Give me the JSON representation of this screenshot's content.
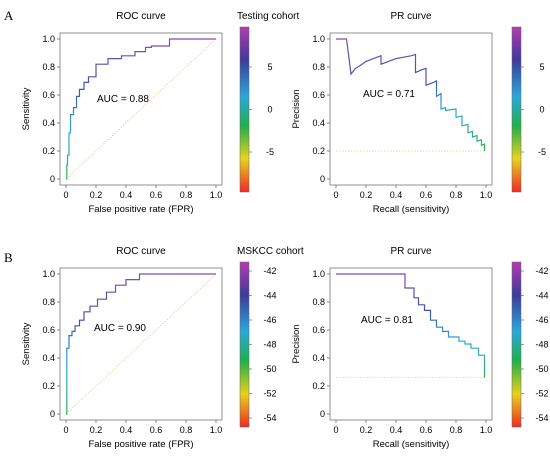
{
  "panels": [
    {
      "label": "A",
      "cohort_title": "Testing cohort"
    },
    {
      "label": "B",
      "cohort_title": "MSKCC cohort"
    }
  ],
  "chart_data": [
    {
      "type": "line",
      "title": "ROC curve",
      "xlabel": "False positive rate (FPR)",
      "ylabel": "Sensitivity",
      "xlim": [
        0,
        1
      ],
      "ylim": [
        0,
        1
      ],
      "xticks": [
        "0",
        "0.2",
        "0.4",
        "0.6",
        "0.8",
        "1.0"
      ],
      "yticks": [
        "0",
        "0.2",
        "0.4",
        "0.6",
        "0.8",
        "1.0"
      ],
      "annotation": "AUC = 0.88",
      "x": [
        0,
        0.005,
        0.005,
        0.01,
        0.01,
        0.02,
        0.02,
        0.03,
        0.03,
        0.05,
        0.05,
        0.07,
        0.07,
        0.09,
        0.09,
        0.12,
        0.12,
        0.15,
        0.15,
        0.2,
        0.2,
        0.28,
        0.28,
        0.37,
        0.37,
        0.46,
        0.46,
        0.53,
        0.53,
        0.57,
        0.57,
        0.69,
        0.69,
        1.0
      ],
      "y": [
        0,
        0,
        0.1,
        0.1,
        0.17,
        0.17,
        0.33,
        0.33,
        0.46,
        0.46,
        0.51,
        0.51,
        0.59,
        0.59,
        0.64,
        0.64,
        0.69,
        0.69,
        0.73,
        0.73,
        0.82,
        0.82,
        0.86,
        0.86,
        0.88,
        0.88,
        0.91,
        0.91,
        0.94,
        0.94,
        0.95,
        0.95,
        1.0,
        1.0
      ],
      "colorbar": {
        "ticks": [
          "5",
          "0",
          "-5"
        ]
      }
    },
    {
      "type": "line",
      "title": "PR curve",
      "xlabel": "Recall (sensitivity)",
      "ylabel": "Precision",
      "xlim": [
        0,
        1
      ],
      "ylim": [
        0,
        1
      ],
      "xticks": [
        "0",
        "0.2",
        "0.4",
        "0.6",
        "0.8",
        "1.0"
      ],
      "yticks": [
        "0",
        "0.2",
        "0.4",
        "0.6",
        "0.8",
        "1.0"
      ],
      "annotation": "AUC = 0.71",
      "baseline": 0.2,
      "x": [
        0,
        0.07,
        0.1,
        0.13,
        0.16,
        0.2,
        0.25,
        0.3,
        0.3,
        0.35,
        0.4,
        0.45,
        0.5,
        0.53,
        0.53,
        0.57,
        0.6,
        0.6,
        0.65,
        0.67,
        0.67,
        0.7,
        0.7,
        0.73,
        0.73,
        0.8,
        0.8,
        0.84,
        0.84,
        0.88,
        0.88,
        0.91,
        0.91,
        0.94,
        0.94,
        0.97,
        0.97,
        0.99,
        0.99
      ],
      "y": [
        1.0,
        1.0,
        0.75,
        0.79,
        0.81,
        0.84,
        0.86,
        0.88,
        0.82,
        0.84,
        0.86,
        0.87,
        0.88,
        0.89,
        0.76,
        0.78,
        0.79,
        0.67,
        0.69,
        0.7,
        0.59,
        0.61,
        0.5,
        0.51,
        0.49,
        0.5,
        0.44,
        0.45,
        0.38,
        0.39,
        0.33,
        0.34,
        0.3,
        0.31,
        0.27,
        0.28,
        0.24,
        0.25,
        0.2
      ],
      "colorbar": {
        "ticks": [
          "5",
          "0",
          "-5"
        ]
      }
    },
    {
      "type": "line",
      "title": "ROC curve",
      "xlabel": "False positive rate (FPR)",
      "ylabel": "Sensitivity",
      "xlim": [
        0,
        1
      ],
      "ylim": [
        0,
        1
      ],
      "xticks": [
        "0",
        "0.2",
        "0.4",
        "0.6",
        "0.8",
        "1.0"
      ],
      "yticks": [
        "0",
        "0.2",
        "0.4",
        "0.6",
        "0.8",
        "1.0"
      ],
      "annotation": "AUC = 0.90",
      "x": [
        0,
        0.005,
        0.005,
        0.02,
        0.02,
        0.04,
        0.04,
        0.06,
        0.06,
        0.09,
        0.09,
        0.12,
        0.12,
        0.16,
        0.16,
        0.21,
        0.21,
        0.27,
        0.27,
        0.33,
        0.33,
        0.4,
        0.4,
        0.49,
        0.49,
        1.0
      ],
      "y": [
        0,
        0,
        0.47,
        0.47,
        0.56,
        0.56,
        0.59,
        0.59,
        0.63,
        0.63,
        0.67,
        0.67,
        0.73,
        0.73,
        0.77,
        0.77,
        0.82,
        0.82,
        0.87,
        0.87,
        0.92,
        0.92,
        0.96,
        0.96,
        1.0,
        1.0
      ],
      "colorbar": {
        "ticks": [
          "-42",
          "-44",
          "-46",
          "-48",
          "-50",
          "-52",
          "-54"
        ]
      }
    },
    {
      "type": "line",
      "title": "PR curve",
      "xlabel": "Recall (sensitivity)",
      "ylabel": "Precision",
      "xlim": [
        0,
        1
      ],
      "ylim": [
        0,
        1
      ],
      "xticks": [
        "0",
        "0.2",
        "0.4",
        "0.6",
        "0.8",
        "1.0"
      ],
      "yticks": [
        "0",
        "0.2",
        "0.4",
        "0.6",
        "0.8",
        "1.0"
      ],
      "annotation": "AUC = 0.81",
      "baseline": 0.26,
      "x": [
        0,
        0.46,
        0.46,
        0.52,
        0.52,
        0.55,
        0.55,
        0.59,
        0.59,
        0.63,
        0.63,
        0.67,
        0.67,
        0.71,
        0.71,
        0.75,
        0.75,
        0.82,
        0.82,
        0.86,
        0.86,
        0.9,
        0.9,
        0.95,
        0.95,
        0.99,
        0.99
      ],
      "y": [
        1.0,
        1.0,
        0.9,
        0.9,
        0.83,
        0.83,
        0.78,
        0.78,
        0.74,
        0.74,
        0.67,
        0.67,
        0.62,
        0.62,
        0.59,
        0.59,
        0.55,
        0.55,
        0.52,
        0.52,
        0.5,
        0.5,
        0.47,
        0.47,
        0.42,
        0.42,
        0.26
      ],
      "colorbar": {
        "ticks": [
          "-42",
          "-44",
          "-46",
          "-48",
          "-50",
          "-52",
          "-54"
        ]
      }
    }
  ]
}
